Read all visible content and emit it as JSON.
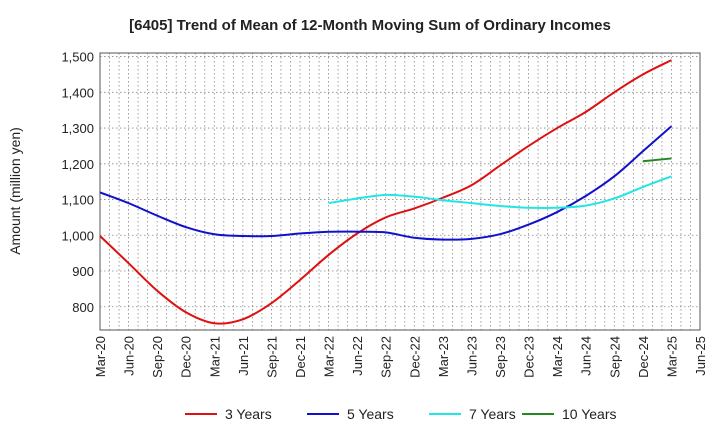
{
  "chart_data": {
    "type": "line",
    "title": "[6405]  Trend of Mean of 12-Month Moving Sum of Ordinary Incomes",
    "xlabel": "",
    "ylabel": "Amount (million yen)",
    "ylim": [
      735,
      1510
    ],
    "y_ticks": [
      800,
      900,
      1000,
      1100,
      1200,
      1300,
      1400,
      1500
    ],
    "y_tick_labels": [
      "800",
      "900",
      "1,000",
      "1,100",
      "1,200",
      "1,300",
      "1,400",
      "1,500"
    ],
    "categories": [
      "Mar-20",
      "Jun-20",
      "Sep-20",
      "Dec-20",
      "Mar-21",
      "Jun-21",
      "Sep-21",
      "Dec-21",
      "Mar-22",
      "Jun-22",
      "Sep-22",
      "Dec-22",
      "Mar-23",
      "Jun-23",
      "Sep-23",
      "Dec-23",
      "Mar-24",
      "Jun-24",
      "Sep-24",
      "Dec-24",
      "Mar-25",
      "Jun-25"
    ],
    "grid": true,
    "legend_position": "bottom",
    "series": [
      {
        "name": "3 Years",
        "color": "#dd1111",
        "x": [
          "Mar-20",
          "Jun-20",
          "Sep-20",
          "Dec-20",
          "Mar-21",
          "Jun-21",
          "Sep-21",
          "Dec-21",
          "Mar-22",
          "Jun-22",
          "Sep-22",
          "Dec-22",
          "Mar-23",
          "Jun-23",
          "Sep-23",
          "Dec-23",
          "Mar-24",
          "Jun-24",
          "Sep-24",
          "Dec-24",
          "Mar-25"
        ],
        "values": [
          998,
          922,
          845,
          785,
          754,
          765,
          810,
          875,
          945,
          1005,
          1050,
          1075,
          1105,
          1140,
          1195,
          1250,
          1300,
          1345,
          1400,
          1450,
          1490
        ]
      },
      {
        "name": "5 Years",
        "color": "#1111cc",
        "x": [
          "Mar-20",
          "Jun-20",
          "Sep-20",
          "Dec-20",
          "Mar-21",
          "Jun-21",
          "Sep-21",
          "Dec-21",
          "Mar-22",
          "Jun-22",
          "Sep-22",
          "Dec-22",
          "Mar-23",
          "Jun-23",
          "Sep-23",
          "Dec-23",
          "Mar-24",
          "Jun-24",
          "Sep-24",
          "Dec-24",
          "Mar-25"
        ],
        "values": [
          1120,
          1090,
          1055,
          1023,
          1003,
          998,
          998,
          1005,
          1010,
          1010,
          1008,
          993,
          988,
          990,
          1003,
          1030,
          1065,
          1110,
          1165,
          1235,
          1305
        ]
      },
      {
        "name": "7 Years",
        "color": "#22e5e5",
        "x": [
          "Mar-22",
          "Jun-22",
          "Sep-22",
          "Dec-22",
          "Mar-23",
          "Jun-23",
          "Sep-23",
          "Dec-23",
          "Mar-24",
          "Jun-24",
          "Sep-24",
          "Dec-24",
          "Mar-25"
        ],
        "values": [
          1090,
          1103,
          1113,
          1108,
          1098,
          1090,
          1082,
          1077,
          1077,
          1083,
          1103,
          1135,
          1165
        ]
      },
      {
        "name": "10 Years",
        "color": "#228822",
        "x": [
          "Dec-24",
          "Mar-25"
        ],
        "values": [
          1207,
          1215
        ]
      }
    ]
  }
}
